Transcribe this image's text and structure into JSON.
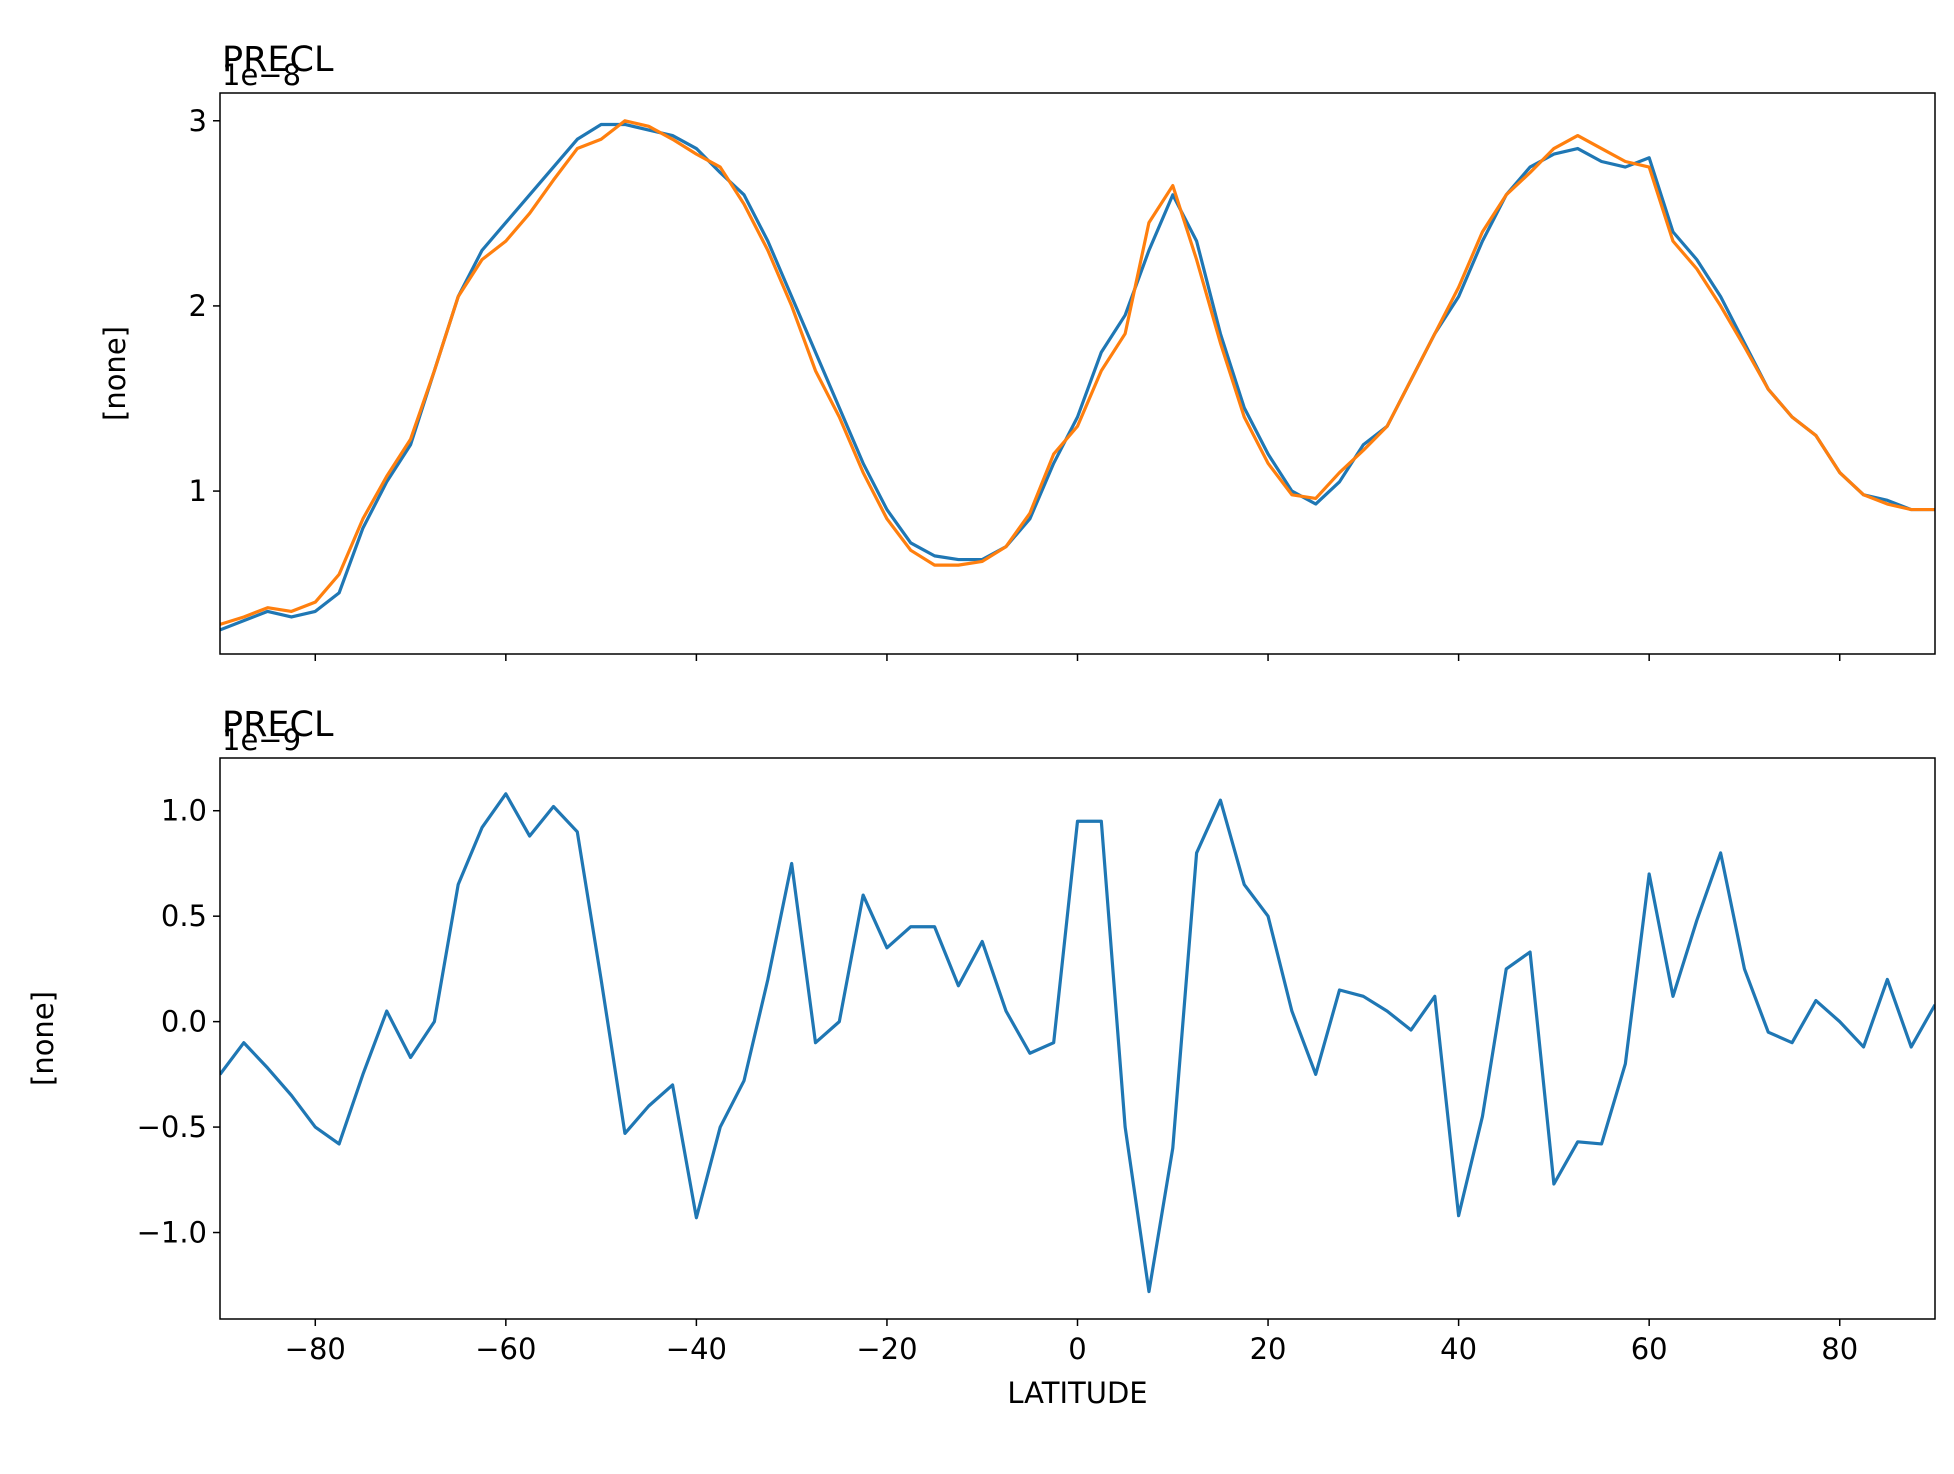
{
  "chart_data": [
    {
      "type": "line",
      "title": "PRECL",
      "offset_text": "1e−8",
      "ylabel": "[none]",
      "x": [
        -90,
        -87.5,
        -85,
        -82.5,
        -80,
        -77.5,
        -75,
        -72.5,
        -70,
        -67.5,
        -65,
        -62.5,
        -60,
        -57.5,
        -55,
        -52.5,
        -50,
        -47.5,
        -45,
        -42.5,
        -40,
        -37.5,
        -35,
        -32.5,
        -30,
        -27.5,
        -25,
        -22.5,
        -20,
        -17.5,
        -15,
        -12.5,
        -10,
        -7.5,
        -5,
        -2.5,
        0,
        2.5,
        5,
        7.5,
        10,
        12.5,
        15,
        17.5,
        20,
        22.5,
        25,
        27.5,
        30,
        32.5,
        35,
        37.5,
        40,
        42.5,
        45,
        47.5,
        50,
        52.5,
        55,
        57.5,
        60,
        62.5,
        65,
        67.5,
        70,
        72.5,
        75,
        77.5,
        80,
        82.5,
        85,
        87.5,
        90
      ],
      "series": [
        {
          "color": "#1f77b4",
          "values": [
            0.25,
            0.3,
            0.35,
            0.32,
            0.35,
            0.45,
            0.8,
            1.05,
            1.25,
            1.65,
            2.05,
            2.3,
            2.45,
            2.6,
            2.75,
            2.9,
            2.98,
            2.98,
            2.95,
            2.92,
            2.85,
            2.72,
            2.6,
            2.35,
            2.05,
            1.75,
            1.45,
            1.15,
            0.9,
            0.72,
            0.65,
            0.63,
            0.63,
            0.7,
            0.85,
            1.15,
            1.4,
            1.75,
            1.95,
            2.3,
            2.6,
            2.35,
            1.85,
            1.45,
            1.2,
            1.0,
            0.93,
            1.05,
            1.25,
            1.35,
            1.6,
            1.85,
            2.05,
            2.35,
            2.6,
            2.75,
            2.82,
            2.85,
            2.78,
            2.75,
            2.8,
            2.4,
            2.25,
            2.05,
            1.8,
            1.55,
            1.4,
            1.3,
            1.1,
            0.98,
            0.95,
            0.9,
            0.9
          ]
        },
        {
          "color": "#ff7f0e",
          "values": [
            0.28,
            0.32,
            0.37,
            0.35,
            0.4,
            0.55,
            0.85,
            1.08,
            1.28,
            1.65,
            2.05,
            2.25,
            2.35,
            2.5,
            2.68,
            2.85,
            2.9,
            3.0,
            2.97,
            2.9,
            2.82,
            2.75,
            2.55,
            2.3,
            2.0,
            1.65,
            1.4,
            1.1,
            0.85,
            0.68,
            0.6,
            0.6,
            0.62,
            0.7,
            0.88,
            1.2,
            1.35,
            1.65,
            1.85,
            2.45,
            2.65,
            2.25,
            1.8,
            1.4,
            1.15,
            0.98,
            0.96,
            1.1,
            1.22,
            1.35,
            1.6,
            1.85,
            2.1,
            2.4,
            2.6,
            2.72,
            2.85,
            2.92,
            2.85,
            2.78,
            2.75,
            2.35,
            2.2,
            2.0,
            1.78,
            1.55,
            1.4,
            1.3,
            1.1,
            0.98,
            0.93,
            0.9,
            0.9
          ]
        }
      ],
      "xlim": [
        -90,
        90
      ],
      "ylim": [
        0.12,
        3.15
      ],
      "xticks": [
        -80,
        -60,
        -40,
        -20,
        0,
        20,
        40,
        60,
        80
      ],
      "yticks": [
        1,
        2,
        3
      ]
    },
    {
      "type": "line",
      "title": "PRECL",
      "offset_text": "1e−9",
      "ylabel": "[none]",
      "xlabel": "LATITUDE",
      "x": [
        -90,
        -87.5,
        -85,
        -82.5,
        -80,
        -77.5,
        -75,
        -72.5,
        -70,
        -67.5,
        -65,
        -62.5,
        -60,
        -57.5,
        -55,
        -52.5,
        -50,
        -47.5,
        -45,
        -42.5,
        -40,
        -37.5,
        -35,
        -32.5,
        -30,
        -27.5,
        -25,
        -22.5,
        -20,
        -17.5,
        -15,
        -12.5,
        -10,
        -7.5,
        -5,
        -2.5,
        0,
        2.5,
        5,
        7.5,
        10,
        12.5,
        15,
        17.5,
        20,
        22.5,
        25,
        27.5,
        30,
        32.5,
        35,
        37.5,
        40,
        42.5,
        45,
        47.5,
        50,
        52.5,
        55,
        57.5,
        60,
        62.5,
        65,
        67.5,
        70,
        72.5,
        75,
        77.5,
        80,
        82.5,
        85,
        87.5,
        90
      ],
      "series": [
        {
          "color": "#1f77b4",
          "values": [
            -0.25,
            -0.1,
            -0.22,
            -0.35,
            -0.5,
            -0.58,
            -0.25,
            0.05,
            -0.17,
            0.0,
            0.65,
            0.92,
            1.08,
            0.88,
            1.02,
            0.9,
            0.2,
            -0.53,
            -0.4,
            -0.3,
            -0.93,
            -0.5,
            -0.28,
            0.2,
            0.75,
            -0.1,
            0.0,
            0.6,
            0.35,
            0.45,
            0.45,
            0.17,
            0.38,
            0.05,
            -0.15,
            -0.1,
            0.95,
            0.95,
            -0.5,
            -1.28,
            -0.6,
            0.8,
            1.05,
            0.65,
            0.5,
            0.05,
            -0.25,
            0.15,
            0.12,
            0.05,
            -0.04,
            0.12,
            -0.92,
            -0.45,
            0.25,
            0.33,
            -0.77,
            -0.57,
            -0.58,
            -0.2,
            0.7,
            0.12,
            0.48,
            0.8,
            0.25,
            -0.05,
            -0.1,
            0.1,
            0.0,
            -0.12,
            0.2,
            -0.12,
            0.08
          ]
        }
      ],
      "xlim": [
        -90,
        90
      ],
      "ylim": [
        -1.41,
        1.25
      ],
      "xticks": [
        {
          "value": -80,
          "label": "−80"
        },
        {
          "value": -60,
          "label": "−60"
        },
        {
          "value": -40,
          "label": "−40"
        },
        {
          "value": -20,
          "label": "−20"
        },
        0,
        20,
        40,
        60,
        80
      ],
      "yticks": [
        {
          "value": -1,
          "label": "−1.0"
        },
        {
          "value": -0.5,
          "label": "−0.5"
        },
        {
          "value": 0,
          "label": "0.0"
        },
        {
          "value": 0.5,
          "label": "0.5"
        },
        {
          "value": 1,
          "label": "1.0"
        }
      ]
    }
  ]
}
